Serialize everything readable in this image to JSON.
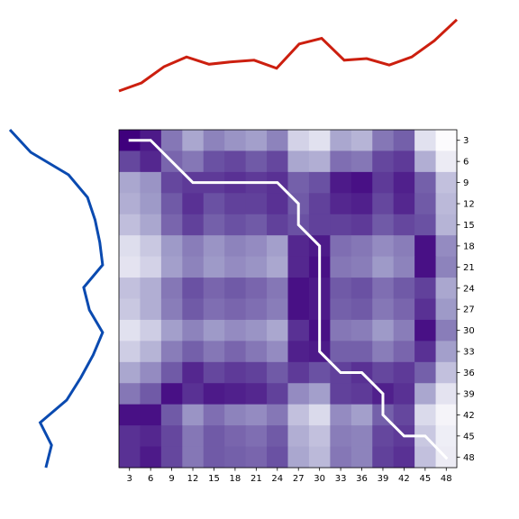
{
  "chart_data": {
    "type": "heatmap",
    "colormap": "Purples",
    "tick_labels": [
      "3",
      "6",
      "9",
      "12",
      "15",
      "18",
      "21",
      "24",
      "27",
      "30",
      "33",
      "36",
      "39",
      "42",
      "45",
      "48"
    ],
    "matrix": [
      [
        1.0,
        0.92,
        0.62,
        0.45,
        0.58,
        0.52,
        0.48,
        0.58,
        0.28,
        0.2,
        0.45,
        0.4,
        0.62,
        0.7,
        0.2,
        0.0
      ],
      [
        0.78,
        0.88,
        0.68,
        0.62,
        0.75,
        0.78,
        0.72,
        0.78,
        0.45,
        0.42,
        0.65,
        0.62,
        0.78,
        0.82,
        0.42,
        0.12
      ],
      [
        0.45,
        0.52,
        0.78,
        0.82,
        0.82,
        0.85,
        0.82,
        0.85,
        0.7,
        0.75,
        0.92,
        0.95,
        0.82,
        0.9,
        0.7,
        0.35
      ],
      [
        0.42,
        0.5,
        0.72,
        0.85,
        0.75,
        0.8,
        0.8,
        0.85,
        0.72,
        0.8,
        0.88,
        0.9,
        0.78,
        0.88,
        0.72,
        0.38
      ],
      [
        0.36,
        0.45,
        0.68,
        0.8,
        0.7,
        0.75,
        0.72,
        0.8,
        0.75,
        0.8,
        0.8,
        0.82,
        0.72,
        0.78,
        0.75,
        0.4
      ],
      [
        0.22,
        0.32,
        0.5,
        0.6,
        0.52,
        0.58,
        0.55,
        0.48,
        0.88,
        0.92,
        0.65,
        0.62,
        0.55,
        0.6,
        0.95,
        0.55
      ],
      [
        0.18,
        0.28,
        0.48,
        0.58,
        0.5,
        0.55,
        0.52,
        0.45,
        0.88,
        0.95,
        0.62,
        0.6,
        0.5,
        0.58,
        0.95,
        0.58
      ],
      [
        0.35,
        0.42,
        0.62,
        0.75,
        0.68,
        0.72,
        0.68,
        0.62,
        0.95,
        0.92,
        0.72,
        0.75,
        0.65,
        0.72,
        0.8,
        0.45
      ],
      [
        0.32,
        0.42,
        0.6,
        0.72,
        0.65,
        0.68,
        0.65,
        0.6,
        0.95,
        0.92,
        0.7,
        0.72,
        0.62,
        0.68,
        0.85,
        0.5
      ],
      [
        0.2,
        0.3,
        0.48,
        0.58,
        0.5,
        0.55,
        0.52,
        0.45,
        0.85,
        0.95,
        0.62,
        0.6,
        0.5,
        0.6,
        0.95,
        0.6
      ],
      [
        0.3,
        0.4,
        0.6,
        0.7,
        0.62,
        0.68,
        0.62,
        0.55,
        0.9,
        0.92,
        0.7,
        0.7,
        0.6,
        0.68,
        0.85,
        0.48
      ],
      [
        0.45,
        0.55,
        0.72,
        0.88,
        0.78,
        0.82,
        0.8,
        0.72,
        0.82,
        0.75,
        0.8,
        0.85,
        0.78,
        0.82,
        0.7,
        0.35
      ],
      [
        0.62,
        0.72,
        0.95,
        0.85,
        0.92,
        0.9,
        0.88,
        0.8,
        0.55,
        0.48,
        0.8,
        0.82,
        0.9,
        0.85,
        0.45,
        0.18
      ],
      [
        0.95,
        0.95,
        0.72,
        0.52,
        0.65,
        0.58,
        0.55,
        0.62,
        0.35,
        0.25,
        0.55,
        0.48,
        0.7,
        0.78,
        0.25,
        0.05
      ],
      [
        0.85,
        0.88,
        0.78,
        0.62,
        0.72,
        0.68,
        0.65,
        0.72,
        0.42,
        0.35,
        0.6,
        0.58,
        0.78,
        0.82,
        0.32,
        0.1
      ],
      [
        0.85,
        0.92,
        0.78,
        0.62,
        0.72,
        0.7,
        0.68,
        0.75,
        0.45,
        0.38,
        0.62,
        0.58,
        0.8,
        0.85,
        0.35,
        0.12
      ]
    ],
    "path": [
      [
        0,
        0
      ],
      [
        1,
        0
      ],
      [
        2,
        1
      ],
      [
        3,
        2
      ],
      [
        4,
        2
      ],
      [
        5,
        2
      ],
      [
        6,
        2
      ],
      [
        7,
        2
      ],
      [
        8,
        3
      ],
      [
        8,
        4
      ],
      [
        9,
        5
      ],
      [
        9,
        6
      ],
      [
        9,
        7
      ],
      [
        9,
        8
      ],
      [
        9,
        9
      ],
      [
        9,
        10
      ],
      [
        10,
        11
      ],
      [
        11,
        11
      ],
      [
        12,
        12
      ],
      [
        12,
        13
      ],
      [
        13,
        14
      ],
      [
        14,
        14
      ],
      [
        15,
        15
      ]
    ],
    "path_color": "#ffffff",
    "top_series": {
      "color": "#cc1f0f",
      "values": [
        0.3,
        0.4,
        0.6,
        0.72,
        0.63,
        0.66,
        0.68,
        0.58,
        0.88,
        0.95,
        0.68,
        0.7,
        0.62,
        0.72,
        0.92,
        1.18
      ]
    },
    "left_series": {
      "color": "#0a4ab0",
      "values": [
        1.0,
        0.78,
        0.38,
        0.18,
        0.1,
        0.05,
        0.02,
        0.22,
        0.16,
        0.02,
        0.12,
        0.25,
        0.4,
        0.68,
        0.56,
        0.62
      ]
    }
  }
}
